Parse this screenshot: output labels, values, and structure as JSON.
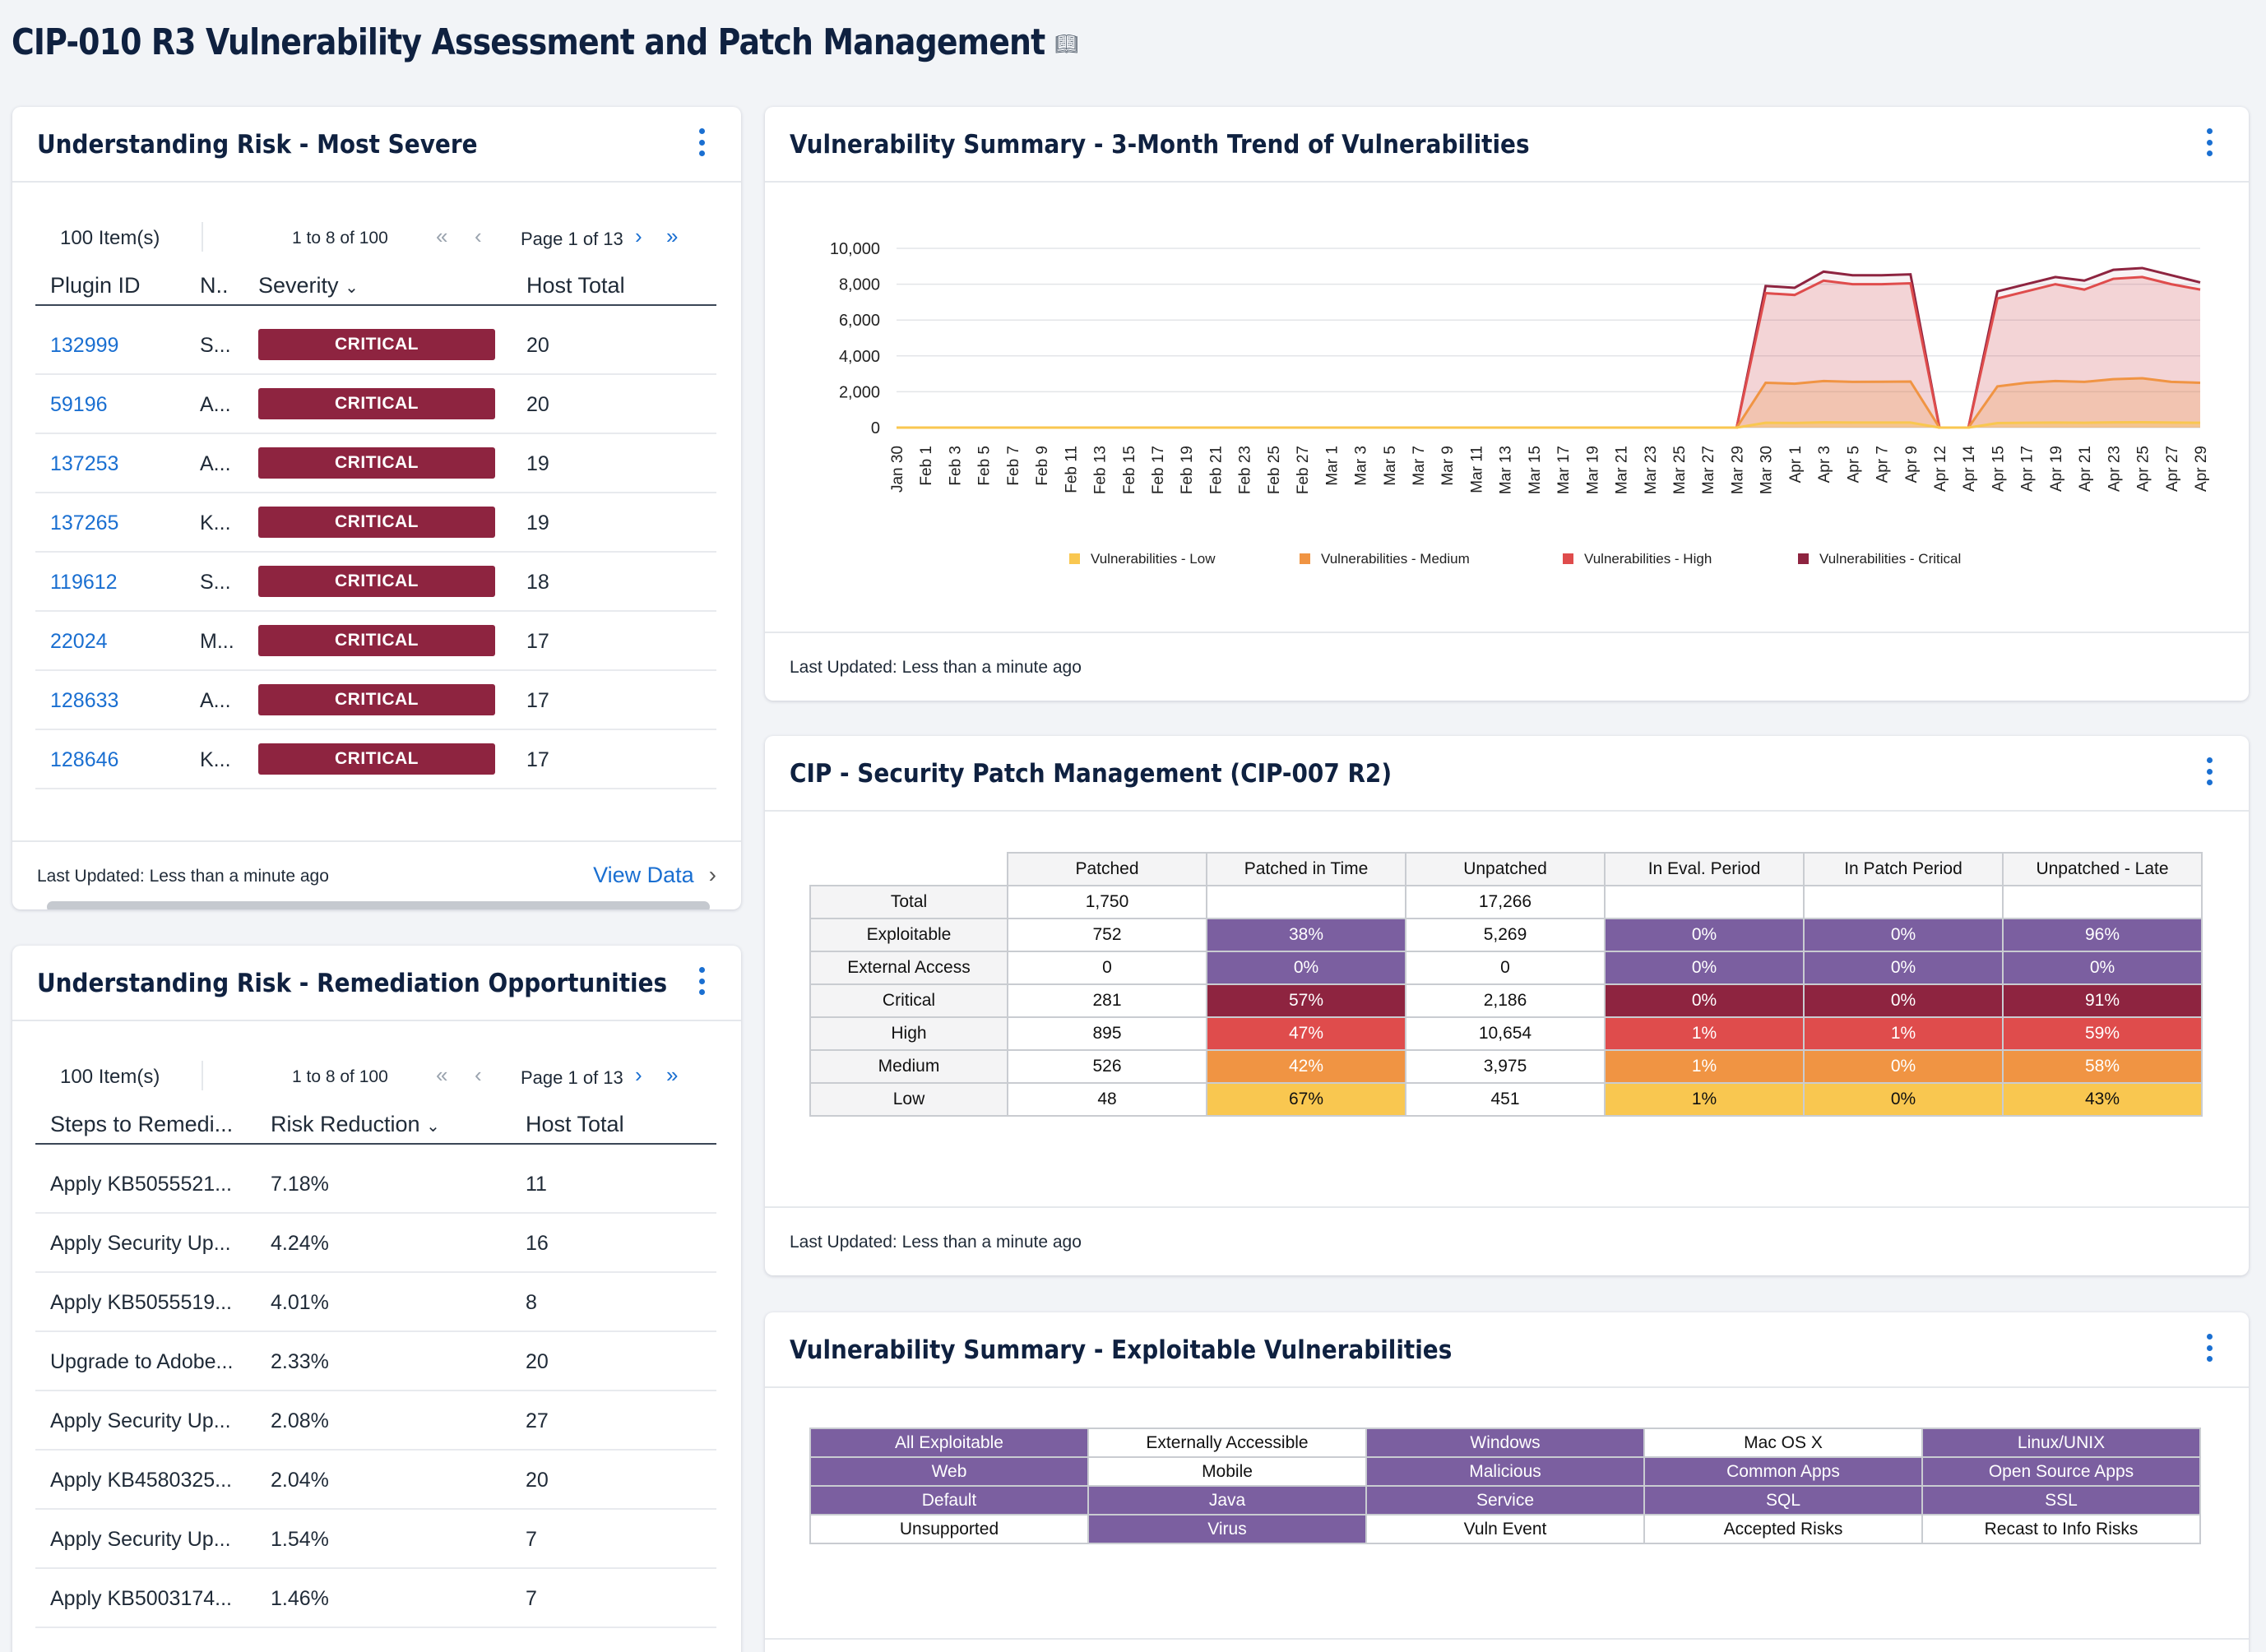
{
  "page": {
    "title": "CIP-010 R3 Vulnerability Assessment and Patch Management"
  },
  "colors": {
    "critical": "#8e2440",
    "high": "#df4c4c",
    "medium": "#f09443",
    "low": "#f9c750",
    "purple": "#7b5fa0",
    "link": "#1a6fd1"
  },
  "most_severe": {
    "title": "Understanding Risk - Most Severe",
    "items": "100 Item(s)",
    "range": "1 to 8 of 100",
    "page": "Page 1 of 13",
    "columns": [
      "Plugin ID",
      "N..",
      "Severity",
      "Host Total"
    ],
    "rows": [
      {
        "id": "132999",
        "name": "S...",
        "severity": "CRITICAL",
        "hosts": "20"
      },
      {
        "id": "59196",
        "name": "A...",
        "severity": "CRITICAL",
        "hosts": "20"
      },
      {
        "id": "137253",
        "name": "A...",
        "severity": "CRITICAL",
        "hosts": "19"
      },
      {
        "id": "137265",
        "name": "K...",
        "severity": "CRITICAL",
        "hosts": "19"
      },
      {
        "id": "119612",
        "name": "S...",
        "severity": "CRITICAL",
        "hosts": "18"
      },
      {
        "id": "22024",
        "name": "M...",
        "severity": "CRITICAL",
        "hosts": "17"
      },
      {
        "id": "128633",
        "name": "A...",
        "severity": "CRITICAL",
        "hosts": "17"
      },
      {
        "id": "128646",
        "name": "K...",
        "severity": "CRITICAL",
        "hosts": "17"
      }
    ],
    "updated": "Last Updated: Less than a minute ago",
    "view_data": "View Data"
  },
  "remediation": {
    "title": "Understanding Risk - Remediation Opportunities",
    "items": "100 Item(s)",
    "range": "1 to 8 of 100",
    "page": "Page 1 of 13",
    "columns": [
      "Steps to Remedi...",
      "Risk Reduction",
      "Host Total"
    ],
    "rows": [
      {
        "step": "Apply KB5055521...",
        "risk": "7.18%",
        "hosts": "11"
      },
      {
        "step": "Apply Security Up...",
        "risk": "4.24%",
        "hosts": "16"
      },
      {
        "step": "Apply KB5055519...",
        "risk": "4.01%",
        "hosts": "8"
      },
      {
        "step": "Upgrade to Adobe...",
        "risk": "2.33%",
        "hosts": "20"
      },
      {
        "step": "Apply Security Up...",
        "risk": "2.08%",
        "hosts": "27"
      },
      {
        "step": "Apply KB4580325...",
        "risk": "2.04%",
        "hosts": "20"
      },
      {
        "step": "Apply Security Up...",
        "risk": "1.54%",
        "hosts": "7"
      },
      {
        "step": "Apply KB5003174...",
        "risk": "1.46%",
        "hosts": "7"
      }
    ]
  },
  "trend": {
    "title": "Vulnerability Summary - 3-Month Trend of Vulnerabilities",
    "updated": "Last Updated: Less than a minute ago"
  },
  "chart_data": {
    "type": "area",
    "title": "Vulnerability Summary - 3-Month Trend of Vulnerabilities",
    "ylim": [
      0,
      10000
    ],
    "yticks": [
      "0",
      "2,000",
      "4,000",
      "6,000",
      "8,000",
      "10,000"
    ],
    "x": [
      "Jan 30",
      "Feb 1",
      "Feb 3",
      "Feb 5",
      "Feb 7",
      "Feb 9",
      "Feb 11",
      "Feb 13",
      "Feb 15",
      "Feb 17",
      "Feb 19",
      "Feb 21",
      "Feb 23",
      "Feb 25",
      "Feb 27",
      "Mar 1",
      "Mar 3",
      "Mar 5",
      "Mar 7",
      "Mar 9",
      "Mar 11",
      "Mar 13",
      "Mar 15",
      "Mar 17",
      "Mar 19",
      "Mar 21",
      "Mar 23",
      "Mar 25",
      "Mar 27",
      "Mar 29",
      "Mar 30",
      "Apr 1",
      "Apr 3",
      "Apr 5",
      "Apr 7",
      "Apr 9",
      "Apr 12",
      "Apr 14",
      "Apr 15",
      "Apr 17",
      "Apr 19",
      "Apr 21",
      "Apr 23",
      "Apr 25",
      "Apr 27",
      "Apr 29"
    ],
    "series": [
      {
        "name": "Vulnerabilities - Low",
        "color": "#f9c750",
        "values": [
          0,
          0,
          0,
          0,
          0,
          0,
          0,
          0,
          0,
          0,
          0,
          0,
          0,
          0,
          0,
          0,
          0,
          0,
          0,
          0,
          0,
          0,
          0,
          0,
          0,
          0,
          0,
          0,
          0,
          0,
          270,
          260,
          290,
          280,
          280,
          280,
          0,
          0,
          250,
          270,
          280,
          270,
          290,
          300,
          280,
          270
        ]
      },
      {
        "name": "Vulnerabilities - Medium",
        "color": "#f09443",
        "values": [
          0,
          0,
          0,
          0,
          0,
          0,
          0,
          0,
          0,
          0,
          0,
          0,
          0,
          0,
          0,
          0,
          0,
          0,
          0,
          0,
          0,
          0,
          0,
          0,
          0,
          0,
          0,
          0,
          0,
          0,
          2500,
          2450,
          2600,
          2550,
          2560,
          2570,
          0,
          0,
          2300,
          2500,
          2600,
          2550,
          2700,
          2750,
          2550,
          2500
        ]
      },
      {
        "name": "Vulnerabilities - High",
        "color": "#df4c4c",
        "values": [
          0,
          0,
          0,
          0,
          0,
          0,
          0,
          0,
          0,
          0,
          0,
          0,
          0,
          0,
          0,
          0,
          0,
          0,
          0,
          0,
          0,
          0,
          0,
          0,
          0,
          0,
          0,
          0,
          0,
          0,
          7500,
          7400,
          8200,
          8000,
          8000,
          8050,
          0,
          0,
          7200,
          7600,
          8000,
          7700,
          8300,
          8400,
          8000,
          7700
        ]
      },
      {
        "name": "Vulnerabilities - Critical",
        "color": "#8e2440",
        "values": [
          0,
          0,
          0,
          0,
          0,
          0,
          0,
          0,
          0,
          0,
          0,
          0,
          0,
          0,
          0,
          0,
          0,
          0,
          0,
          0,
          0,
          0,
          0,
          0,
          0,
          0,
          0,
          0,
          0,
          0,
          7900,
          7800,
          8700,
          8500,
          8500,
          8550,
          0,
          0,
          7600,
          8000,
          8400,
          8200,
          8800,
          8900,
          8500,
          8100
        ]
      }
    ]
  },
  "patch": {
    "title": "CIP - Security Patch Management (CIP-007 R2)",
    "updated": "Last Updated: Less than a minute ago",
    "columns": [
      "Patched",
      "Patched in Time",
      "Unpatched",
      "In Eval. Period",
      "In Patch Period",
      "Unpatched - Late"
    ],
    "rows": [
      {
        "label": "Total",
        "cells": [
          "1,750",
          "",
          "17,266",
          "",
          "",
          ""
        ]
      },
      {
        "label": "Exploitable",
        "cells": [
          "752",
          "38%",
          "5,269",
          "0%",
          "0%",
          "96%"
        ]
      },
      {
        "label": "External Access",
        "cells": [
          "0",
          "0%",
          "0",
          "0%",
          "0%",
          "0%"
        ]
      },
      {
        "label": "Critical",
        "cells": [
          "281",
          "57%",
          "2,186",
          "0%",
          "0%",
          "91%"
        ]
      },
      {
        "label": "High",
        "cells": [
          "895",
          "47%",
          "10,654",
          "1%",
          "1%",
          "59%"
        ]
      },
      {
        "label": "Medium",
        "cells": [
          "526",
          "42%",
          "3,975",
          "1%",
          "0%",
          "58%"
        ]
      },
      {
        "label": "Low",
        "cells": [
          "48",
          "67%",
          "451",
          "1%",
          "0%",
          "43%"
        ]
      }
    ]
  },
  "exploitable": {
    "title": "Vulnerability Summary - Exploitable Vulnerabilities",
    "grid": [
      [
        "All Exploitable",
        "Externally Accessible",
        "Windows",
        "Mac OS X",
        "Linux/UNIX"
      ],
      [
        "Web",
        "Mobile",
        "Malicious",
        "Common Apps",
        "Open Source Apps"
      ],
      [
        "Default",
        "Java",
        "Service",
        "SQL",
        "SSL"
      ],
      [
        "Unsupported",
        "Virus",
        "Vuln Event",
        "Accepted Risks",
        "Recast to Info Risks"
      ]
    ]
  }
}
